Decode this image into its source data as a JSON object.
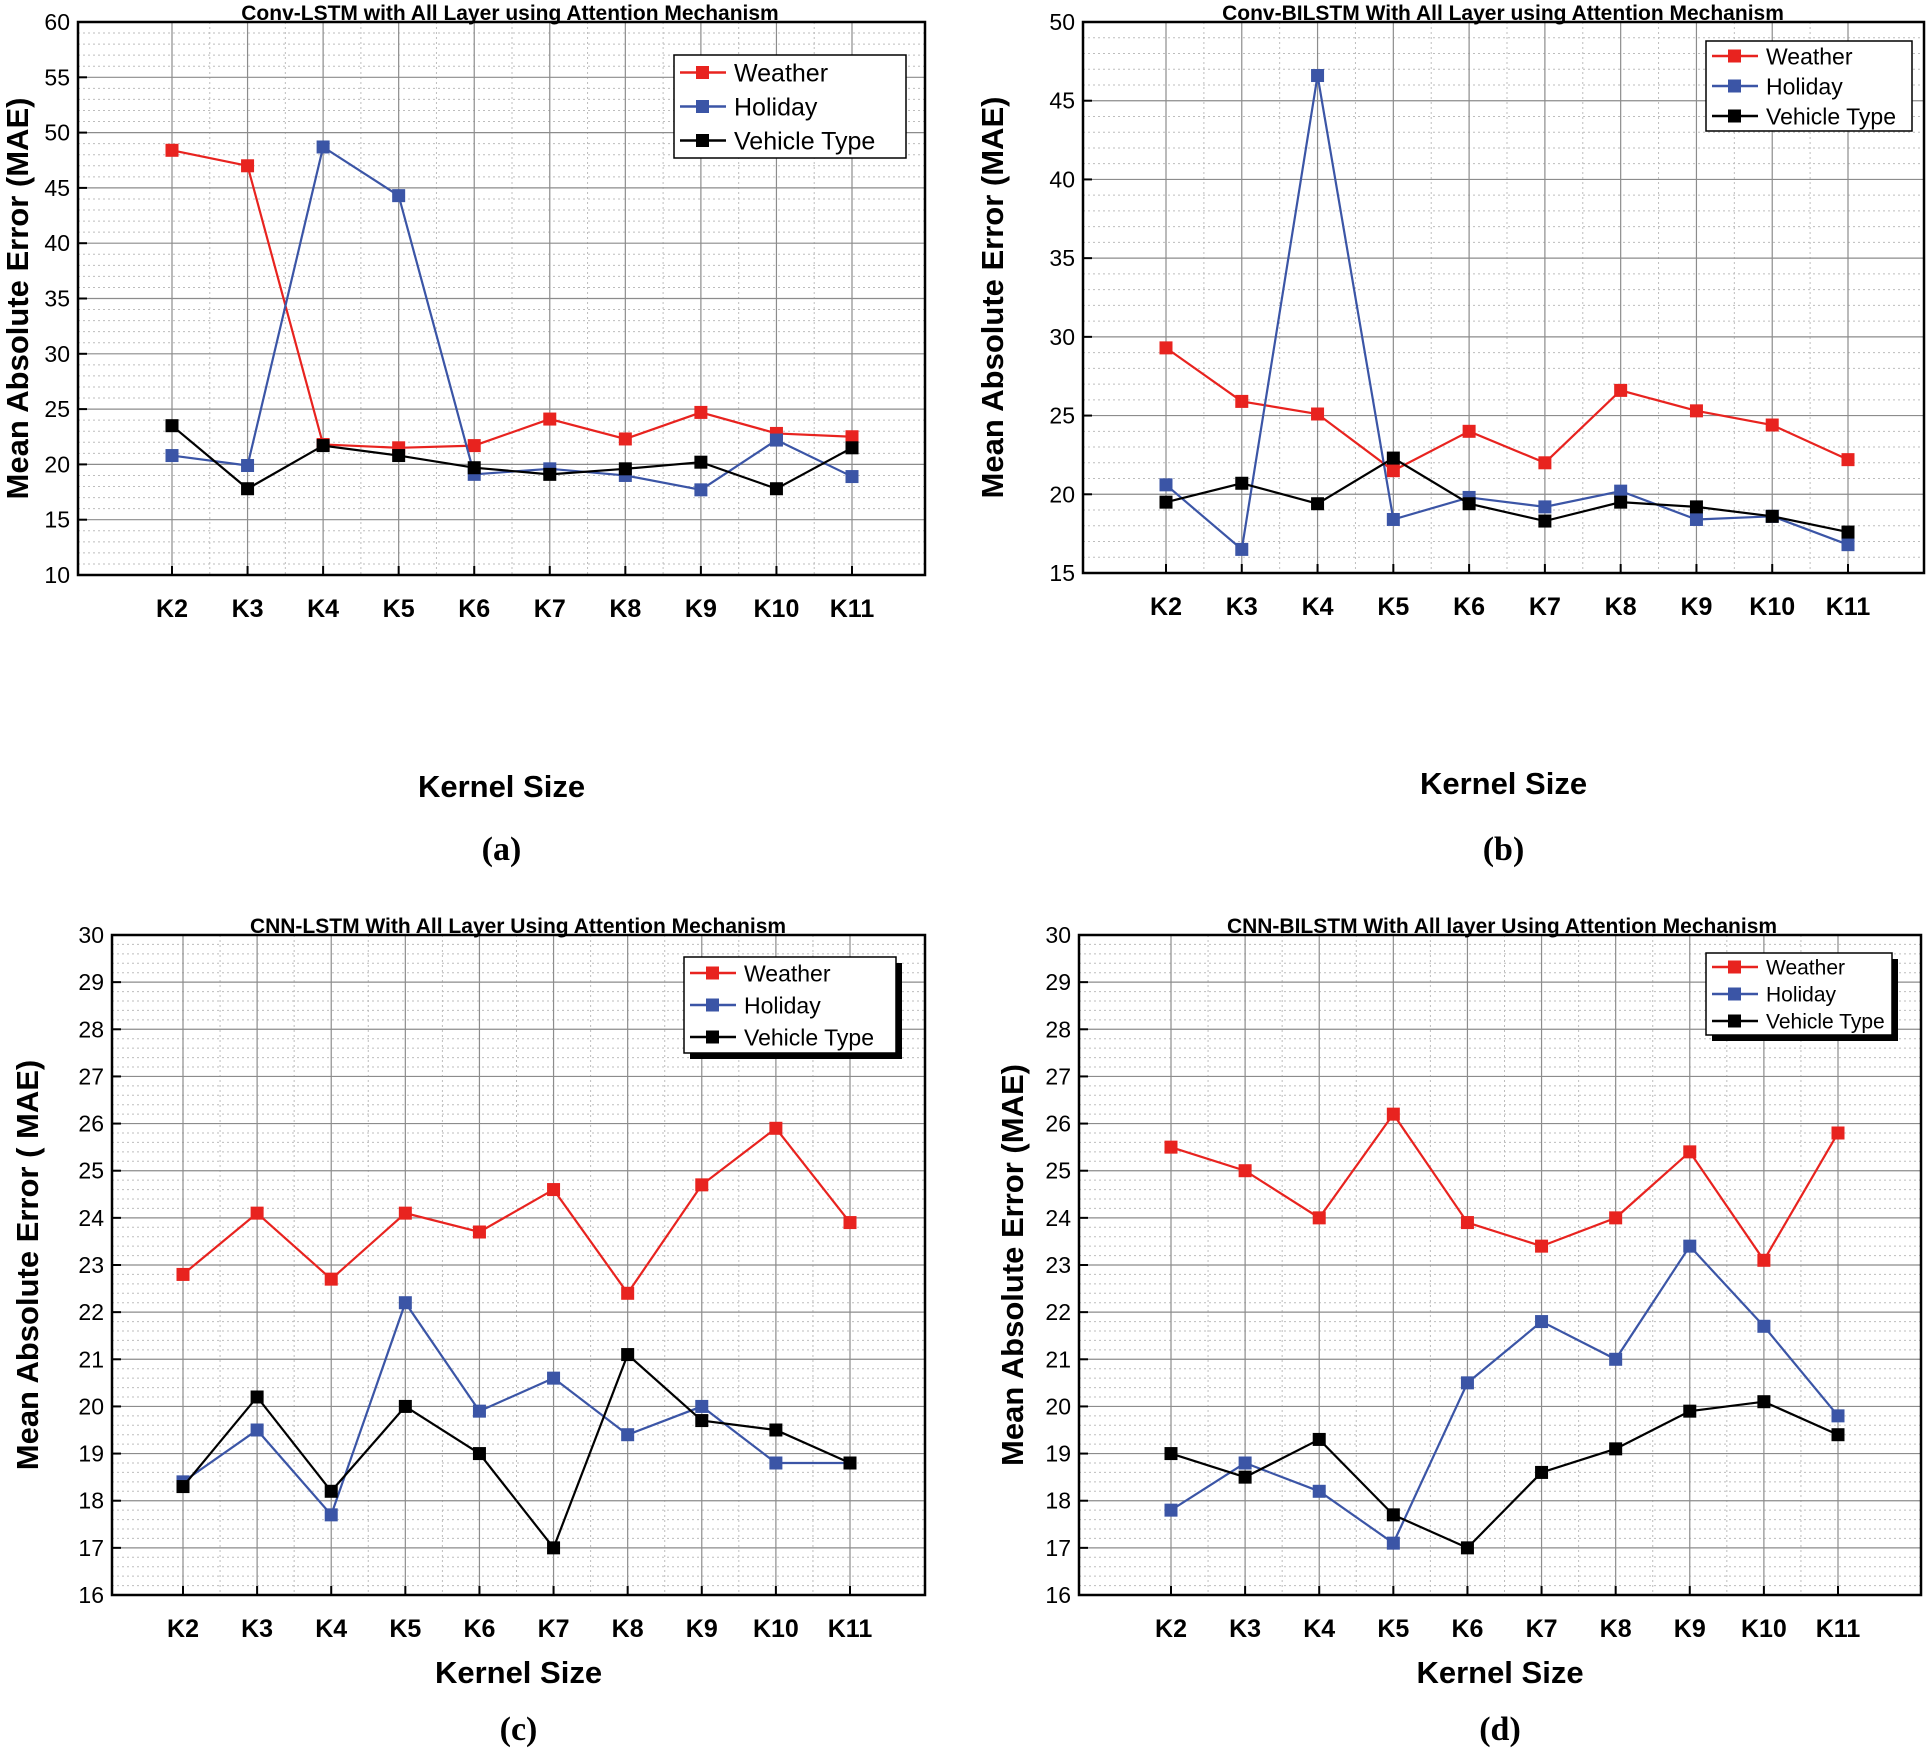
{
  "chart_data": [
    {
      "type": "line",
      "panel_label": "(a)",
      "title": "Conv-LSTM with All Layer using Attention Mechanism",
      "xlabel": "Kernel Size",
      "ylabel": "Mean Absolute Error (MAE)",
      "ylim": [
        10,
        60
      ],
      "yticks": [
        10,
        15,
        20,
        25,
        30,
        35,
        40,
        45,
        50,
        55,
        60
      ],
      "categories": [
        "K2",
        "K3",
        "K4",
        "K5",
        "K6",
        "K7",
        "K8",
        "K9",
        "K10",
        "K11"
      ],
      "grid": true,
      "legend_position": "top-right",
      "series": [
        {
          "name": "Weather",
          "color": "#e8231f",
          "values": [
            48.4,
            47.0,
            21.8,
            21.5,
            21.7,
            24.1,
            22.3,
            24.7,
            22.8,
            22.5
          ]
        },
        {
          "name": "Holiday",
          "color": "#3b55a6",
          "values": [
            20.8,
            19.9,
            48.7,
            44.3,
            19.1,
            19.6,
            19.0,
            17.7,
            22.2,
            18.9
          ]
        },
        {
          "name": "Vehicle Type",
          "color": "#000000",
          "values": [
            23.5,
            17.8,
            21.7,
            20.8,
            19.7,
            19.1,
            19.6,
            20.2,
            17.8,
            21.5
          ]
        }
      ]
    },
    {
      "type": "line",
      "panel_label": "(b)",
      "title": "Conv-BILSTM With All Layer using Attention Mechanism",
      "xlabel": "Kernel Size",
      "ylabel": "Mean Absolute Error (MAE)",
      "ylim": [
        15,
        50
      ],
      "yticks": [
        15,
        20,
        25,
        30,
        35,
        40,
        45,
        50
      ],
      "categories": [
        "K2",
        "K3",
        "K4",
        "K5",
        "K6",
        "K7",
        "K8",
        "K9",
        "K10",
        "K11"
      ],
      "grid": true,
      "legend_position": "top-right",
      "series": [
        {
          "name": "Weather",
          "color": "#e8231f",
          "values": [
            29.3,
            25.9,
            25.1,
            21.5,
            24.0,
            22.0,
            26.6,
            25.3,
            24.4,
            22.2
          ]
        },
        {
          "name": "Holiday",
          "color": "#3b55a6",
          "values": [
            20.6,
            16.5,
            46.6,
            18.4,
            19.8,
            19.2,
            20.2,
            18.4,
            18.6,
            16.8
          ]
        },
        {
          "name": "Vehicle Type",
          "color": "#000000",
          "values": [
            19.5,
            20.7,
            19.4,
            22.3,
            19.4,
            18.3,
            19.5,
            19.2,
            18.6,
            17.6
          ]
        }
      ]
    },
    {
      "type": "line",
      "panel_label": "(c)",
      "title": "CNN-LSTM With All Layer Using Attention Mechanism",
      "xlabel": "Kernel Size",
      "ylabel": "Mean Absolute Error ( MAE)",
      "ylim": [
        16,
        30
      ],
      "yticks": [
        16,
        17,
        18,
        19,
        20,
        21,
        22,
        23,
        24,
        25,
        26,
        27,
        28,
        29,
        30
      ],
      "categories": [
        "K2",
        "K3",
        "K4",
        "K5",
        "K6",
        "K7",
        "K8",
        "K9",
        "K10",
        "K11"
      ],
      "grid": true,
      "legend_position": "top-right",
      "series": [
        {
          "name": "Weather",
          "color": "#e8231f",
          "values": [
            22.8,
            24.1,
            22.7,
            24.1,
            23.7,
            24.6,
            22.4,
            24.7,
            25.9,
            23.9
          ]
        },
        {
          "name": "Holiday",
          "color": "#3b55a6",
          "values": [
            18.4,
            19.5,
            17.7,
            22.2,
            19.9,
            20.6,
            19.4,
            20.0,
            18.8,
            18.8
          ]
        },
        {
          "name": "Vehicle Type",
          "color": "#000000",
          "values": [
            18.3,
            20.2,
            18.2,
            20.0,
            19.0,
            17.0,
            21.1,
            19.7,
            19.5,
            18.8
          ]
        }
      ]
    },
    {
      "type": "line",
      "panel_label": "(d)",
      "title": "CNN-BILSTM With All layer Using Attention Mechanism",
      "xlabel": "Kernel Size",
      "ylabel": "Mean Absolute Error (MAE)",
      "ylim": [
        16,
        30
      ],
      "yticks": [
        16,
        17,
        18,
        19,
        20,
        21,
        22,
        23,
        24,
        25,
        26,
        27,
        28,
        29,
        30
      ],
      "categories": [
        "K2",
        "K3",
        "K4",
        "K5",
        "K6",
        "K7",
        "K8",
        "K9",
        "K10",
        "K11"
      ],
      "grid": true,
      "legend_position": "top-right",
      "series": [
        {
          "name": "Weather",
          "color": "#e8231f",
          "values": [
            25.5,
            25.0,
            24.0,
            26.2,
            23.9,
            23.4,
            24.0,
            25.4,
            23.1,
            25.8
          ]
        },
        {
          "name": "Holiday",
          "color": "#3b55a6",
          "values": [
            17.8,
            18.8,
            18.2,
            17.1,
            20.5,
            21.8,
            21.0,
            23.4,
            21.7,
            19.8
          ]
        },
        {
          "name": "Vehicle Type",
          "color": "#000000",
          "values": [
            19.0,
            18.5,
            19.3,
            17.7,
            17.0,
            18.6,
            19.1,
            19.9,
            20.1,
            19.4
          ]
        }
      ]
    }
  ]
}
